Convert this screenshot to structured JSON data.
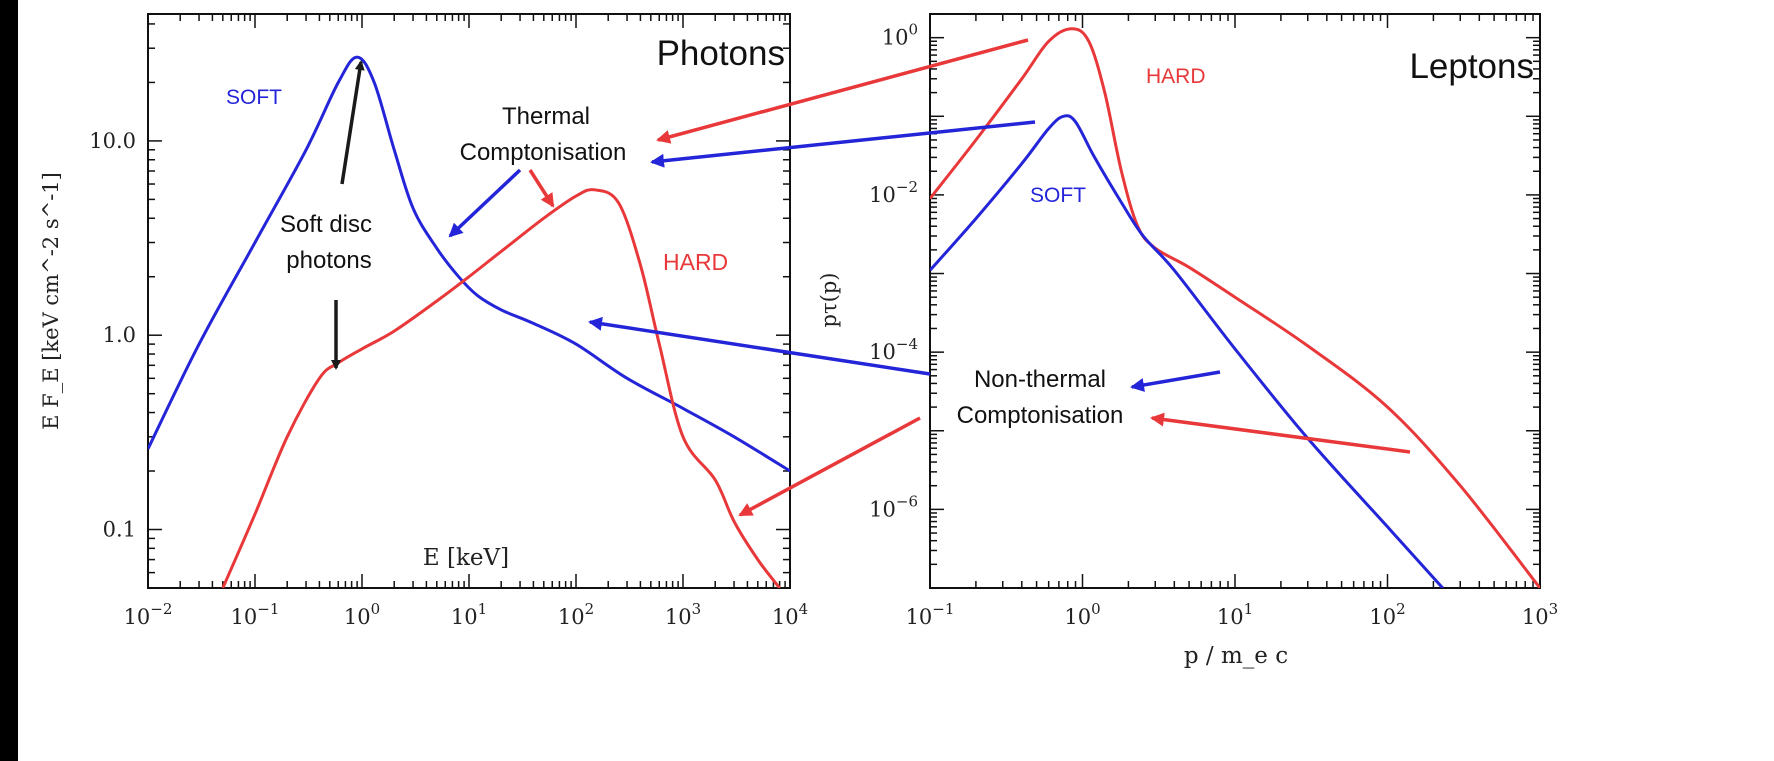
{
  "colors": {
    "background": "#000000",
    "soft": "#2424d8",
    "hard": "#e8383a",
    "pointer": "#1a1a1a",
    "panel": "#ffffff"
  },
  "chart_data": [
    {
      "type": "line",
      "panel_title": "Photons",
      "xlabel": "E [keV]",
      "ylabel": "E F_E [keV cm^-2 s^-1]",
      "xscale": "log",
      "yscale": "log",
      "xlim": [
        0.01,
        10000
      ],
      "ylim": [
        0.05,
        45
      ],
      "x_ticks": [
        "10^-2",
        "10^-1",
        "10^0",
        "10^1",
        "10^2",
        "10^3",
        "10^4"
      ],
      "y_ticks": [
        "0.1",
        "1.0",
        "10.0"
      ],
      "grid": false,
      "series": [
        {
          "name": "SOFT",
          "color_key": "soft",
          "x": [
            0.01,
            0.03,
            0.1,
            0.3,
            0.6,
            0.9,
            1.3,
            2,
            3,
            5,
            8,
            12,
            20,
            40,
            100,
            300,
            1000,
            3000,
            10000
          ],
          "y": [
            0.26,
            0.9,
            3.0,
            9.0,
            20,
            27,
            20,
            9.0,
            4.5,
            2.8,
            2.0,
            1.6,
            1.35,
            1.15,
            0.9,
            0.6,
            0.42,
            0.3,
            0.2
          ]
        },
        {
          "name": "HARD",
          "color_key": "hard",
          "x": [
            0.05,
            0.1,
            0.2,
            0.4,
            0.6,
            1,
            2,
            5,
            10,
            20,
            50,
            100,
            150,
            250,
            400,
            600,
            1000,
            2000,
            3000,
            5000,
            8000
          ],
          "y": [
            0.05,
            0.12,
            0.3,
            0.6,
            0.72,
            0.85,
            1.05,
            1.5,
            2.0,
            2.7,
            4.0,
            5.2,
            5.6,
            4.8,
            2.3,
            0.9,
            0.3,
            0.18,
            0.11,
            0.07,
            0.05
          ]
        }
      ],
      "labels": {
        "soft": "SOFT",
        "hard": "HARD"
      }
    },
    {
      "type": "line",
      "panel_title": "Leptons",
      "xlabel": "p / m_e c",
      "ylabel": "pτ(p)",
      "xscale": "log",
      "yscale": "log",
      "xlim": [
        0.1,
        1000
      ],
      "ylim": [
        1e-07,
        2
      ],
      "x_ticks": [
        "10^-1",
        "10^0",
        "10^1",
        "10^2",
        "10^3"
      ],
      "y_ticks": [
        "10^0",
        "10^-2",
        "10^-4",
        "10^-6"
      ],
      "grid": false,
      "series": [
        {
          "name": "HARD",
          "color_key": "hard",
          "x": [
            0.1,
            0.2,
            0.4,
            0.6,
            0.85,
            1.1,
            1.4,
            1.8,
            2.3,
            3,
            5,
            10,
            30,
            100,
            300,
            1000
          ],
          "y": [
            0.009,
            0.05,
            0.3,
            0.9,
            1.3,
            0.9,
            0.2,
            0.02,
            0.004,
            0.0021,
            0.0012,
            0.0005,
            0.00012,
            2e-05,
            2e-06,
            1e-07
          ]
        },
        {
          "name": "SOFT",
          "color_key": "soft",
          "x": [
            0.1,
            0.2,
            0.4,
            0.6,
            0.75,
            0.9,
            1.2,
            1.8,
            2.5,
            4,
            10,
            30,
            100,
            230
          ],
          "y": [
            0.0011,
            0.005,
            0.025,
            0.07,
            0.1,
            0.085,
            0.03,
            0.008,
            0.003,
            0.0011,
            0.00011,
            8e-06,
            6e-07,
            1e-07
          ]
        }
      ],
      "labels": {
        "soft": "SOFT",
        "hard": "HARD"
      }
    }
  ],
  "annotations": {
    "thermal_line1": "Thermal",
    "thermal_line2": "Comptonisation",
    "nonthermal_line1": "Non-thermal",
    "nonthermal_line2": "Comptonisation",
    "soft_disc_line1": "Soft disc",
    "soft_disc_line2": "photons"
  }
}
